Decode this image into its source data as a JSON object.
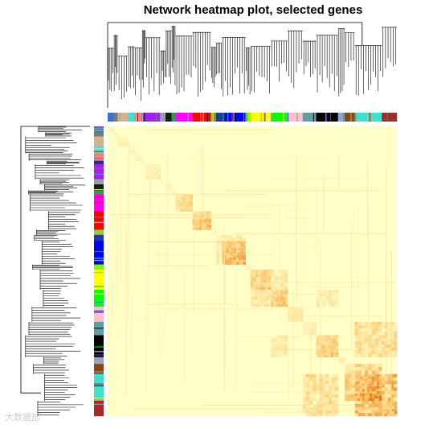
{
  "chart_data": {
    "type": "heatmap",
    "title": "Network heatmap plot, selected genes",
    "xlabel": "",
    "ylabel": "",
    "color_scale": [
      "#FFFFC8",
      "#FDE6A0",
      "#F9BF63",
      "#EC8A2B",
      "#C55A08"
    ],
    "dendrogram": {
      "top": true,
      "left": true
    },
    "modules": [
      {
        "color": "#3a6fd8",
        "fraction": 0.018,
        "intensity": 0.15
      },
      {
        "color": "#7a7a7a",
        "fraction": 0.012,
        "intensity": 0.15
      },
      {
        "color": "#D2B48C",
        "fraction": 0.03,
        "intensity": 0.18
      },
      {
        "color": "#40E0D0",
        "fraction": 0.02,
        "intensity": 0.16
      },
      {
        "color": "#FA8072",
        "fraction": 0.022,
        "intensity": 0.18
      },
      {
        "color": "#2b2b8a",
        "fraction": 0.01,
        "intensity": 0.15
      },
      {
        "color": "#A020F0",
        "fraction": 0.045,
        "intensity": 0.22
      },
      {
        "color": "#9aa0a8",
        "fraction": 0.015,
        "intensity": 0.16
      },
      {
        "color": "#1a1a1a",
        "fraction": 0.018,
        "intensity": 0.18
      },
      {
        "color": "#2b9a4a",
        "fraction": 0.012,
        "intensity": 0.16
      },
      {
        "color": "#FF00FF",
        "fraction": 0.05,
        "intensity": 0.45
      },
      {
        "color": "#FF0000",
        "fraction": 0.055,
        "intensity": 0.6
      },
      {
        "color": "#9ACD32",
        "fraction": 0.015,
        "intensity": 0.18
      },
      {
        "color": "#1f3aa8",
        "fraction": 0.018,
        "intensity": 0.2
      },
      {
        "color": "#0000FF",
        "fraction": 0.07,
        "intensity": 0.7
      },
      {
        "color": "#7CFC00",
        "fraction": 0.015,
        "intensity": 0.2
      },
      {
        "color": "#FFFF00",
        "fraction": 0.06,
        "intensity": 0.55
      },
      {
        "color": "#00FF00",
        "fraction": 0.05,
        "intensity": 0.6
      },
      {
        "color": "#FFC0CB",
        "fraction": 0.045,
        "intensity": 0.3
      },
      {
        "color": "#5f9ea0",
        "fraction": 0.04,
        "intensity": 0.22
      },
      {
        "color": "#000000",
        "fraction": 0.065,
        "intensity": 0.55
      },
      {
        "color": "#87a8c8",
        "fraction": 0.02,
        "intensity": 0.25
      },
      {
        "color": "#8B4513",
        "fraction": 0.03,
        "intensity": 0.35
      },
      {
        "color": "#40E0D0",
        "fraction": 0.08,
        "intensity": 0.85
      },
      {
        "color": "#A52A2A",
        "fraction": 0.045,
        "intensity": 0.75
      }
    ]
  },
  "watermark": "大数据部"
}
